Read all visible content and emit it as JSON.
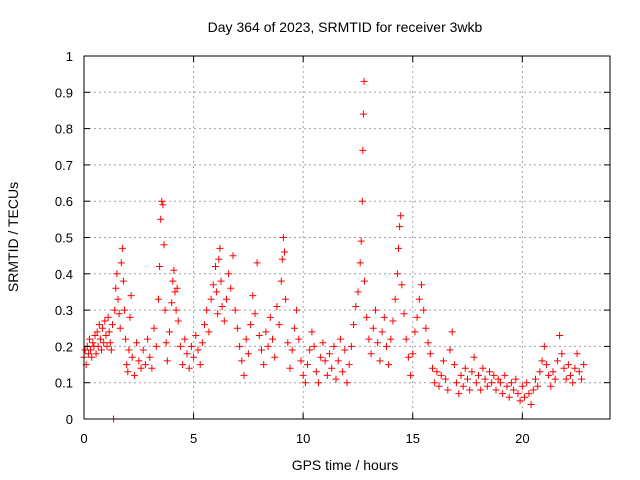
{
  "chart_data": {
    "type": "scatter",
    "title": "Day 364 of 2023, SRMTID for receiver 3wkb",
    "xlabel": "GPS time / hours",
    "ylabel": "SRMTID / TECUs",
    "xlim": [
      0,
      24
    ],
    "ylim": [
      0,
      1
    ],
    "xticks": [
      0,
      5,
      10,
      15,
      20
    ],
    "xtick_labels": [
      "0",
      "5",
      "10",
      "15",
      "20"
    ],
    "yticks": [
      0,
      0.1,
      0.2,
      0.3,
      0.4,
      0.5,
      0.6,
      0.7,
      0.8,
      0.9,
      1
    ],
    "ytick_labels": [
      "0",
      "0.1",
      "0.2",
      "0.3",
      "0.4",
      "0.5",
      "0.6",
      "0.7",
      "0.8",
      "0.9",
      "1"
    ],
    "grid": true,
    "marker": "plus",
    "color": "#ff0000",
    "series": [
      {
        "name": "SRMTID",
        "points": [
          [
            0.0,
            0.17
          ],
          [
            0.05,
            0.19
          ],
          [
            0.1,
            0.15
          ],
          [
            0.15,
            0.2
          ],
          [
            0.2,
            0.18
          ],
          [
            0.25,
            0.22
          ],
          [
            0.3,
            0.19
          ],
          [
            0.35,
            0.17
          ],
          [
            0.4,
            0.21
          ],
          [
            0.45,
            0.2
          ],
          [
            0.5,
            0.23
          ],
          [
            0.55,
            0.18
          ],
          [
            0.6,
            0.24
          ],
          [
            0.65,
            0.2
          ],
          [
            0.7,
            0.26
          ],
          [
            0.75,
            0.22
          ],
          [
            0.8,
            0.19
          ],
          [
            0.85,
            0.25
          ],
          [
            0.9,
            0.21
          ],
          [
            0.95,
            0.27
          ],
          [
            1.0,
            0.23
          ],
          [
            1.05,
            0.2
          ],
          [
            1.1,
            0.28
          ],
          [
            1.15,
            0.24
          ],
          [
            1.2,
            0.21
          ],
          [
            1.25,
            0.19
          ],
          [
            1.3,
            0.26
          ],
          [
            1.35,
            0.0
          ],
          [
            1.4,
            0.3
          ],
          [
            1.45,
            0.36
          ],
          [
            1.5,
            0.4
          ],
          [
            1.55,
            0.33
          ],
          [
            1.6,
            0.29
          ],
          [
            1.65,
            0.25
          ],
          [
            1.7,
            0.43
          ],
          [
            1.75,
            0.47
          ],
          [
            1.8,
            0.38
          ],
          [
            1.85,
            0.3
          ],
          [
            1.9,
            0.22
          ],
          [
            1.95,
            0.15
          ],
          [
            2.0,
            0.13
          ],
          [
            2.05,
            0.19
          ],
          [
            2.1,
            0.28
          ],
          [
            2.15,
            0.34
          ],
          [
            2.2,
            0.17
          ],
          [
            2.3,
            0.12
          ],
          [
            2.4,
            0.21
          ],
          [
            2.5,
            0.16
          ],
          [
            2.6,
            0.14
          ],
          [
            2.7,
            0.19
          ],
          [
            2.8,
            0.15
          ],
          [
            2.9,
            0.22
          ],
          [
            3.0,
            0.17
          ],
          [
            3.1,
            0.14
          ],
          [
            3.2,
            0.25
          ],
          [
            3.3,
            0.2
          ],
          [
            3.4,
            0.33
          ],
          [
            3.45,
            0.42
          ],
          [
            3.5,
            0.55
          ],
          [
            3.55,
            0.6
          ],
          [
            3.6,
            0.59
          ],
          [
            3.65,
            0.48
          ],
          [
            3.7,
            0.3
          ],
          [
            3.75,
            0.21
          ],
          [
            3.8,
            0.16
          ],
          [
            3.9,
            0.24
          ],
          [
            4.0,
            0.32
          ],
          [
            4.05,
            0.38
          ],
          [
            4.1,
            0.41
          ],
          [
            4.15,
            0.35
          ],
          [
            4.2,
            0.3
          ],
          [
            4.25,
            0.36
          ],
          [
            4.3,
            0.27
          ],
          [
            4.4,
            0.2
          ],
          [
            4.5,
            0.15
          ],
          [
            4.6,
            0.22
          ],
          [
            4.7,
            0.18
          ],
          [
            4.8,
            0.14
          ],
          [
            4.9,
            0.2
          ],
          [
            5.0,
            0.17
          ],
          [
            5.1,
            0.23
          ],
          [
            5.2,
            0.19
          ],
          [
            5.3,
            0.15
          ],
          [
            5.4,
            0.21
          ],
          [
            5.5,
            0.26
          ],
          [
            5.6,
            0.3
          ],
          [
            5.7,
            0.24
          ],
          [
            5.8,
            0.33
          ],
          [
            5.9,
            0.37
          ],
          [
            6.0,
            0.42
          ],
          [
            6.05,
            0.35
          ],
          [
            6.1,
            0.29
          ],
          [
            6.15,
            0.44
          ],
          [
            6.2,
            0.47
          ],
          [
            6.25,
            0.38
          ],
          [
            6.3,
            0.31
          ],
          [
            6.4,
            0.27
          ],
          [
            6.5,
            0.33
          ],
          [
            6.6,
            0.4
          ],
          [
            6.7,
            0.36
          ],
          [
            6.8,
            0.45
          ],
          [
            6.9,
            0.3
          ],
          [
            7.0,
            0.25
          ],
          [
            7.1,
            0.2
          ],
          [
            7.2,
            0.16
          ],
          [
            7.3,
            0.12
          ],
          [
            7.4,
            0.22
          ],
          [
            7.5,
            0.18
          ],
          [
            7.6,
            0.26
          ],
          [
            7.7,
            0.34
          ],
          [
            7.8,
            0.29
          ],
          [
            7.9,
            0.43
          ],
          [
            8.0,
            0.23
          ],
          [
            8.1,
            0.19
          ],
          [
            8.2,
            0.15
          ],
          [
            8.3,
            0.24
          ],
          [
            8.4,
            0.2
          ],
          [
            8.5,
            0.28
          ],
          [
            8.6,
            0.22
          ],
          [
            8.7,
            0.17
          ],
          [
            8.8,
            0.31
          ],
          [
            8.9,
            0.26
          ],
          [
            9.0,
            0.38
          ],
          [
            9.05,
            0.44
          ],
          [
            9.1,
            0.5
          ],
          [
            9.15,
            0.46
          ],
          [
            9.2,
            0.33
          ],
          [
            9.3,
            0.21
          ],
          [
            9.4,
            0.14
          ],
          [
            9.5,
            0.19
          ],
          [
            9.6,
            0.25
          ],
          [
            9.7,
            0.3
          ],
          [
            9.8,
            0.22
          ],
          [
            9.9,
            0.16
          ],
          [
            10.0,
            0.12
          ],
          [
            10.1,
            0.1
          ],
          [
            10.2,
            0.15
          ],
          [
            10.3,
            0.19
          ],
          [
            10.4,
            0.24
          ],
          [
            10.5,
            0.2
          ],
          [
            10.6,
            0.13
          ],
          [
            10.7,
            0.1
          ],
          [
            10.8,
            0.17
          ],
          [
            10.9,
            0.21
          ],
          [
            11.0,
            0.16
          ],
          [
            11.1,
            0.12
          ],
          [
            11.2,
            0.18
          ],
          [
            11.3,
            0.14
          ],
          [
            11.4,
            0.2
          ],
          [
            11.5,
            0.11
          ],
          [
            11.6,
            0.16
          ],
          [
            11.7,
            0.22
          ],
          [
            11.8,
            0.13
          ],
          [
            11.9,
            0.19
          ],
          [
            12.0,
            0.1
          ],
          [
            12.1,
            0.15
          ],
          [
            12.2,
            0.2
          ],
          [
            12.3,
            0.26
          ],
          [
            12.4,
            0.31
          ],
          [
            12.5,
            0.35
          ],
          [
            12.6,
            0.43
          ],
          [
            12.65,
            0.49
          ],
          [
            12.7,
            0.6
          ],
          [
            12.72,
            0.74
          ],
          [
            12.75,
            0.84
          ],
          [
            12.78,
            0.93
          ],
          [
            12.8,
            0.38
          ],
          [
            12.9,
            0.28
          ],
          [
            13.0,
            0.22
          ],
          [
            13.1,
            0.18
          ],
          [
            13.2,
            0.25
          ],
          [
            13.3,
            0.3
          ],
          [
            13.4,
            0.21
          ],
          [
            13.5,
            0.16
          ],
          [
            13.6,
            0.24
          ],
          [
            13.7,
            0.28
          ],
          [
            13.8,
            0.2
          ],
          [
            13.9,
            0.15
          ],
          [
            14.0,
            0.22
          ],
          [
            14.1,
            0.27
          ],
          [
            14.2,
            0.33
          ],
          [
            14.3,
            0.4
          ],
          [
            14.35,
            0.47
          ],
          [
            14.4,
            0.53
          ],
          [
            14.45,
            0.56
          ],
          [
            14.5,
            0.37
          ],
          [
            14.6,
            0.29
          ],
          [
            14.7,
            0.22
          ],
          [
            14.8,
            0.17
          ],
          [
            14.9,
            0.12
          ],
          [
            15.0,
            0.18
          ],
          [
            15.1,
            0.24
          ],
          [
            15.2,
            0.28
          ],
          [
            15.3,
            0.33
          ],
          [
            15.4,
            0.37
          ],
          [
            15.5,
            0.3
          ],
          [
            15.6,
            0.25
          ],
          [
            15.7,
            0.21
          ],
          [
            15.8,
            0.18
          ],
          [
            15.9,
            0.14
          ],
          [
            16.0,
            0.1
          ],
          [
            16.1,
            0.13
          ],
          [
            16.2,
            0.09
          ],
          [
            16.3,
            0.12
          ],
          [
            16.4,
            0.16
          ],
          [
            16.5,
            0.11
          ],
          [
            16.6,
            0.08
          ],
          [
            16.7,
            0.19
          ],
          [
            16.8,
            0.24
          ],
          [
            16.9,
            0.15
          ],
          [
            17.0,
            0.1
          ],
          [
            17.1,
            0.07
          ],
          [
            17.2,
            0.12
          ],
          [
            17.3,
            0.09
          ],
          [
            17.4,
            0.14
          ],
          [
            17.5,
            0.11
          ],
          [
            17.6,
            0.08
          ],
          [
            17.7,
            0.13
          ],
          [
            17.8,
            0.17
          ],
          [
            17.9,
            0.1
          ],
          [
            18.0,
            0.12
          ],
          [
            18.1,
            0.08
          ],
          [
            18.2,
            0.14
          ],
          [
            18.3,
            0.11
          ],
          [
            18.4,
            0.09
          ],
          [
            18.5,
            0.13
          ],
          [
            18.6,
            0.1
          ],
          [
            18.7,
            0.12
          ],
          [
            18.8,
            0.08
          ],
          [
            18.9,
            0.11
          ],
          [
            19.0,
            0.1
          ],
          [
            19.1,
            0.07
          ],
          [
            19.2,
            0.12
          ],
          [
            19.3,
            0.09
          ],
          [
            19.4,
            0.06
          ],
          [
            19.5,
            0.1
          ],
          [
            19.6,
            0.08
          ],
          [
            19.7,
            0.11
          ],
          [
            19.8,
            0.07
          ],
          [
            19.9,
            0.05
          ],
          [
            20.0,
            0.09
          ],
          [
            20.1,
            0.06
          ],
          [
            20.2,
            0.1
          ],
          [
            20.3,
            0.07
          ],
          [
            20.4,
            0.04
          ],
          [
            20.5,
            0.08
          ],
          [
            20.6,
            0.11
          ],
          [
            20.7,
            0.09
          ],
          [
            20.8,
            0.13
          ],
          [
            20.9,
            0.16
          ],
          [
            21.0,
            0.2
          ],
          [
            21.1,
            0.15
          ],
          [
            21.2,
            0.12
          ],
          [
            21.3,
            0.09
          ],
          [
            21.4,
            0.13
          ],
          [
            21.5,
            0.11
          ],
          [
            21.6,
            0.16
          ],
          [
            21.7,
            0.23
          ],
          [
            21.8,
            0.18
          ],
          [
            21.9,
            0.14
          ],
          [
            22.0,
            0.11
          ],
          [
            22.1,
            0.15
          ],
          [
            22.2,
            0.12
          ],
          [
            22.3,
            0.1
          ],
          [
            22.4,
            0.14
          ],
          [
            22.5,
            0.18
          ],
          [
            22.6,
            0.13
          ],
          [
            22.7,
            0.11
          ],
          [
            22.8,
            0.15
          ]
        ]
      }
    ]
  }
}
